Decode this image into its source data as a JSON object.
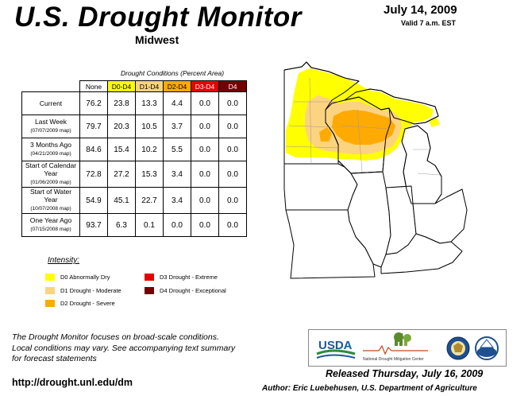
{
  "header": {
    "title": "U.S. Drought Monitor",
    "region": "Midwest",
    "date": "July 14, 2009",
    "valid": "Valid 7 a.m. EST"
  },
  "table": {
    "caption": "Drought Conditions (Percent Area)",
    "columns": [
      "None",
      "D0-D4",
      "D1-D4",
      "D2-D4",
      "D3-D4",
      "D4"
    ],
    "rows": [
      {
        "label": "Current",
        "sub": "",
        "values": [
          "76.2",
          "23.8",
          "13.3",
          "4.4",
          "0.0",
          "0.0"
        ]
      },
      {
        "label": "Last Week",
        "sub": "(07/07/2009 map)",
        "values": [
          "79.7",
          "20.3",
          "10.5",
          "3.7",
          "0.0",
          "0.0"
        ]
      },
      {
        "label": "3 Months Ago",
        "sub": "(04/21/2009 map)",
        "values": [
          "84.6",
          "15.4",
          "10.2",
          "5.5",
          "0.0",
          "0.0"
        ]
      },
      {
        "label": "Start of Calendar Year",
        "sub": "(01/06/2009 map)",
        "values": [
          "72.8",
          "27.2",
          "15.3",
          "3.4",
          "0.0",
          "0.0"
        ]
      },
      {
        "label": "Start of Water Year",
        "sub": "(10/07/2008 map)",
        "values": [
          "54.9",
          "45.1",
          "22.7",
          "3.4",
          "0.0",
          "0.0"
        ]
      },
      {
        "label": "One Year Ago",
        "sub": "(07/15/2008 map)",
        "values": [
          "93.7",
          "6.3",
          "0.1",
          "0.0",
          "0.0",
          "0.0"
        ]
      }
    ]
  },
  "legend": {
    "title": "Intensity:",
    "items": [
      {
        "label": "D0 Abnormally Dry",
        "color": "#ffff00"
      },
      {
        "label": "D1 Drought - Moderate",
        "color": "#fcd37f"
      },
      {
        "label": "D2 Drought - Severe",
        "color": "#ffaa00"
      },
      {
        "label": "D3 Drought - Extreme",
        "color": "#e60000"
      },
      {
        "label": "D4 Drought - Exceptional",
        "color": "#730000"
      }
    ]
  },
  "footer": {
    "note_line1": "The Drought Monitor focuses on broad-scale conditions.",
    "note_line2": "Local conditions may vary. See accompanying text summary",
    "note_line3": "for forecast statements",
    "url": "http://drought.unl.edu/dm",
    "released": "Released Thursday, July 16, 2009",
    "author": "Author: Eric Luebehusen, U.S. Department of Agriculture"
  },
  "logos": {
    "usda": "USDA",
    "ndmc": "National Drought Mitigation Center"
  }
}
